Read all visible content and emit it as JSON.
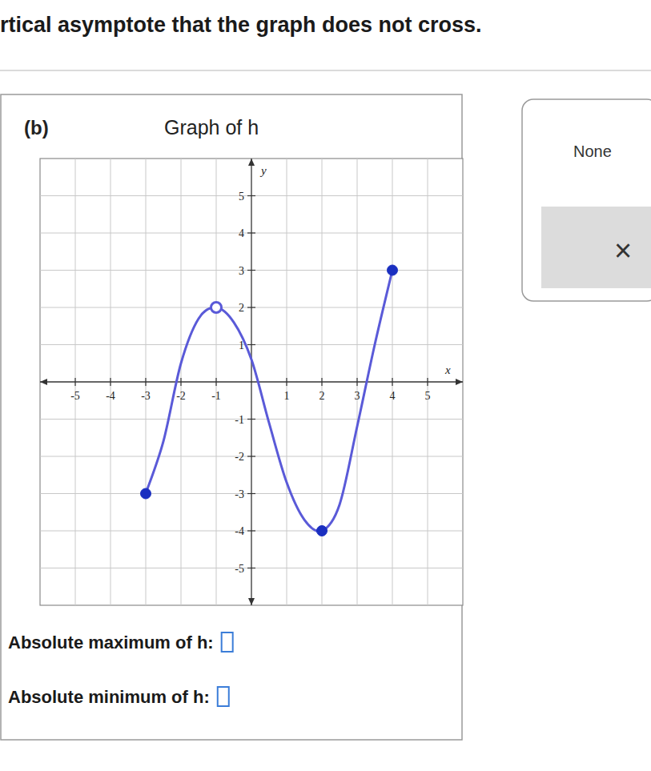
{
  "chart_data": {
    "type": "line",
    "title": "Graph of h",
    "x_label": "x",
    "y_label": "y",
    "xlim": [
      -6,
      6
    ],
    "ylim": [
      -6,
      6
    ],
    "xticks": [
      -5,
      -4,
      -3,
      -2,
      -1,
      1,
      2,
      3,
      4,
      5
    ],
    "yticks": [
      -5,
      -4,
      -3,
      -2,
      -1,
      1,
      2,
      3,
      4,
      5
    ],
    "grid": true,
    "series": [
      {
        "type": "line",
        "color": "#5a5ad8",
        "line_style": "solid",
        "x": [
          -3,
          -2.5,
          -2,
          -1.5,
          -1,
          -0.5,
          0,
          0.5,
          1,
          1.5,
          2,
          2.5,
          3,
          3.5,
          4
        ],
        "values": [
          -3,
          -1.6,
          0.5,
          1.7,
          2,
          1.6,
          0.6,
          -1.1,
          -2.7,
          -3.7,
          -4,
          -3.3,
          -1.2,
          1.0,
          3
        ]
      },
      {
        "type": "scatter",
        "color": "#1a2fc0",
        "marker": "filled",
        "x": [
          -3,
          2,
          4
        ],
        "values": [
          -3,
          -4,
          3
        ]
      },
      {
        "type": "scatter",
        "color": "#5a5ad8",
        "marker": "open",
        "x": [
          -1
        ],
        "values": [
          2
        ]
      }
    ]
  },
  "page": {
    "header": "rtical asymptote that the graph does not cross.",
    "part": "(b)",
    "answers": [
      "Absolute maximum of h:",
      "Absolute minimum of h:"
    ],
    "options": [
      "None",
      "×"
    ]
  }
}
